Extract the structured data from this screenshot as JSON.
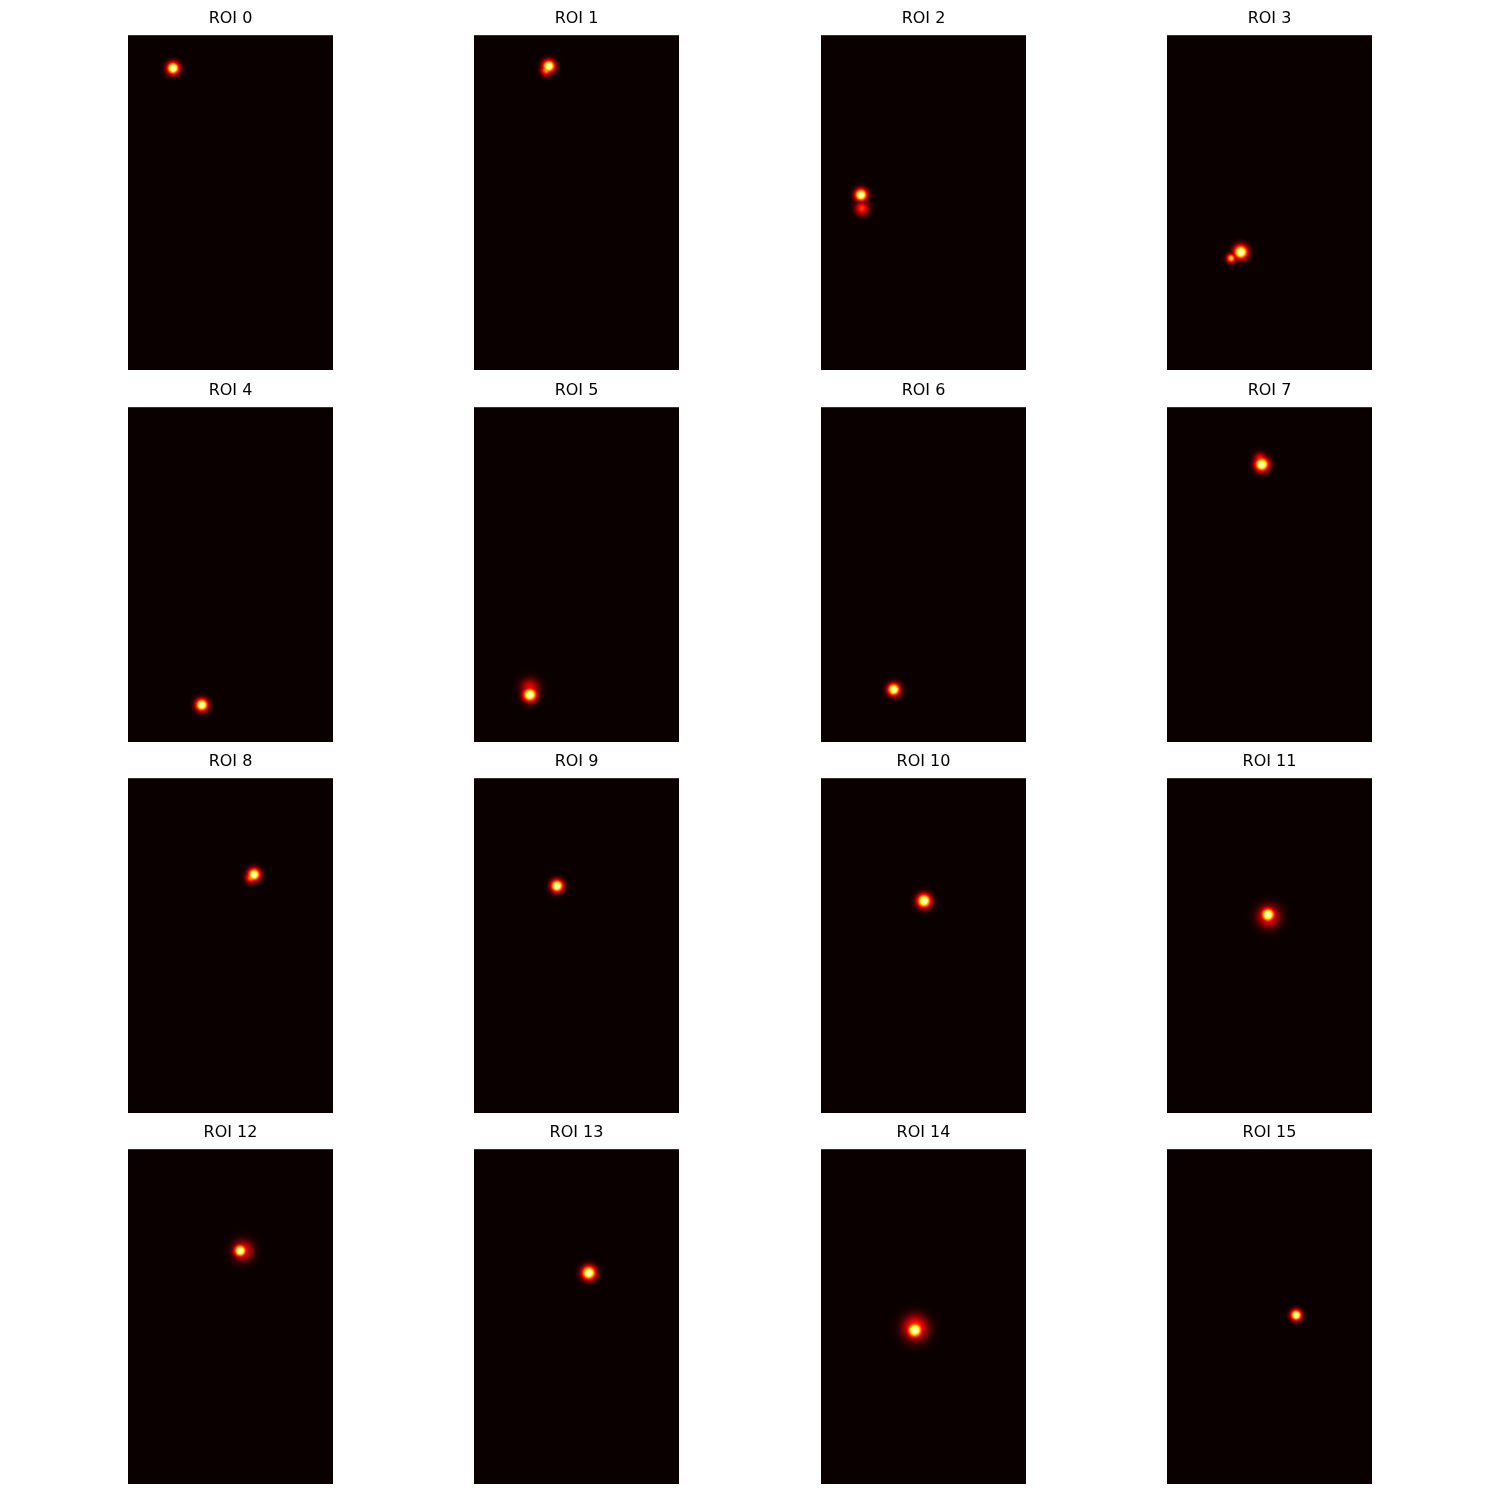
{
  "chart_data": [
    {
      "type": "heatmap",
      "title": "ROI 0",
      "xlim": [
        -0.5,
        39.5
      ],
      "ylim": [
        64.5,
        -0.5
      ],
      "tick_labels": false,
      "spots": [
        {
          "x": 8.3,
          "y": 5.9,
          "sigma": 0.8,
          "value": 1.0
        }
      ]
    },
    {
      "type": "heatmap",
      "title": "ROI 1",
      "xlim": [
        -0.5,
        39.5
      ],
      "ylim": [
        64.5,
        -0.5
      ],
      "tick_labels": false,
      "spots": [
        {
          "x": 14.1,
          "y": 5.5,
          "sigma": 0.8,
          "value": 1.0
        },
        {
          "x": 13.6,
          "y": 6.3,
          "sigma": 0.7,
          "value": 0.6
        }
      ]
    },
    {
      "type": "heatmap",
      "title": "ROI 2",
      "xlim": [
        -0.5,
        39.5
      ],
      "ylim": [
        64.5,
        -0.5
      ],
      "tick_labels": false,
      "spots": [
        {
          "x": 7.5,
          "y": 33.1,
          "sigma": 0.9,
          "value": 0.45
        },
        {
          "x": 7.3,
          "y": 30.5,
          "sigma": 0.8,
          "value": 1.0
        }
      ]
    },
    {
      "type": "heatmap",
      "title": "ROI 3",
      "xlim": [
        -0.5,
        39.5
      ],
      "ylim": [
        64.5,
        -0.5
      ],
      "tick_labels": false,
      "spots": [
        {
          "x": 12.0,
          "y": 42.8,
          "sigma": 0.6,
          "value": 0.7
        },
        {
          "x": 13.9,
          "y": 41.6,
          "sigma": 0.9,
          "value": 1.0
        }
      ]
    },
    {
      "type": "heatmap",
      "title": "ROI 4",
      "xlim": [
        -0.5,
        39.5
      ],
      "ylim": [
        64.5,
        -0.5
      ],
      "tick_labels": false,
      "spots": [
        {
          "x": 13.9,
          "y": 57.3,
          "sigma": 0.8,
          "value": 1.0
        }
      ]
    },
    {
      "type": "heatmap",
      "title": "ROI 5",
      "xlim": [
        -0.5,
        39.5
      ],
      "ylim": [
        64.5,
        -0.5
      ],
      "tick_labels": false,
      "spots": [
        {
          "x": 10.4,
          "y": 54.0,
          "sigma": 1.2,
          "value": 0.35
        },
        {
          "x": 10.4,
          "y": 55.3,
          "sigma": 0.9,
          "value": 1.0
        }
      ]
    },
    {
      "type": "heatmap",
      "title": "ROI 6",
      "xlim": [
        -0.5,
        39.5
      ],
      "ylim": [
        64.5,
        -0.5
      ],
      "tick_labels": false,
      "spots": [
        {
          "x": 13.7,
          "y": 54.3,
          "sigma": 0.8,
          "value": 1.0
        }
      ]
    },
    {
      "type": "heatmap",
      "title": "ROI 7",
      "xlim": [
        -0.5,
        39.5
      ],
      "ylim": [
        64.5,
        -0.5
      ],
      "tick_labels": false,
      "spots": [
        {
          "x": 17.7,
          "y": 9.6,
          "sigma": 0.8,
          "value": 0.45
        },
        {
          "x": 18.0,
          "y": 10.6,
          "sigma": 0.9,
          "value": 1.0
        }
      ]
    },
    {
      "type": "heatmap",
      "title": "ROI 8",
      "xlim": [
        -0.5,
        39.5
      ],
      "ylim": [
        64.5,
        -0.5
      ],
      "tick_labels": false,
      "spots": [
        {
          "x": 23.5,
          "y": 18.8,
          "sigma": 0.7,
          "value": 0.6
        },
        {
          "x": 24.1,
          "y": 18.2,
          "sigma": 0.8,
          "value": 1.0
        }
      ]
    },
    {
      "type": "heatmap",
      "title": "ROI 9",
      "xlim": [
        -0.5,
        39.5
      ],
      "ylim": [
        64.5,
        -0.5
      ],
      "tick_labels": false,
      "spots": [
        {
          "x": 15.7,
          "y": 20.4,
          "sigma": 0.8,
          "value": 1.0
        }
      ]
    },
    {
      "type": "heatmap",
      "title": "ROI 10",
      "xlim": [
        -0.5,
        39.5
      ],
      "ylim": [
        64.5,
        -0.5
      ],
      "tick_labels": false,
      "spots": [
        {
          "x": 19.6,
          "y": 23.3,
          "sigma": 0.9,
          "value": 1.0
        }
      ]
    },
    {
      "type": "heatmap",
      "title": "ROI 11",
      "xlim": [
        -0.5,
        39.5
      ],
      "ylim": [
        64.5,
        -0.5
      ],
      "tick_labels": false,
      "spots": [
        {
          "x": 19.3,
          "y": 26.3,
          "sigma": 1.4,
          "value": 0.45
        },
        {
          "x": 19.2,
          "y": 26.0,
          "sigma": 0.9,
          "value": 1.0
        }
      ]
    },
    {
      "type": "heatmap",
      "title": "ROI 12",
      "xlim": [
        -0.5,
        39.5
      ],
      "ylim": [
        64.5,
        -0.5
      ],
      "tick_labels": false,
      "spots": [
        {
          "x": 21.9,
          "y": 19.2,
          "sigma": 1.3,
          "value": 0.4
        },
        {
          "x": 21.4,
          "y": 19.2,
          "sigma": 0.8,
          "value": 1.0
        }
      ]
    },
    {
      "type": "heatmap",
      "title": "ROI 13",
      "xlim": [
        -0.5,
        39.5
      ],
      "ylim": [
        64.5,
        -0.5
      ],
      "tick_labels": false,
      "spots": [
        {
          "x": 21.9,
          "y": 23.5,
          "sigma": 0.9,
          "value": 1.0
        }
      ]
    },
    {
      "type": "heatmap",
      "title": "ROI 14",
      "xlim": [
        -0.5,
        39.5
      ],
      "ylim": [
        64.5,
        -0.5
      ],
      "tick_labels": false,
      "spots": [
        {
          "x": 17.9,
          "y": 34.2,
          "sigma": 1.6,
          "value": 0.5
        },
        {
          "x": 17.8,
          "y": 34.6,
          "sigma": 1.0,
          "value": 1.0
        }
      ]
    },
    {
      "type": "heatmap",
      "title": "ROI 15",
      "xlim": [
        -0.5,
        39.5
      ],
      "ylim": [
        64.5,
        -0.5
      ],
      "tick_labels": false,
      "spots": [
        {
          "x": 24.7,
          "y": 31.7,
          "sigma": 0.7,
          "value": 1.0
        }
      ]
    }
  ]
}
